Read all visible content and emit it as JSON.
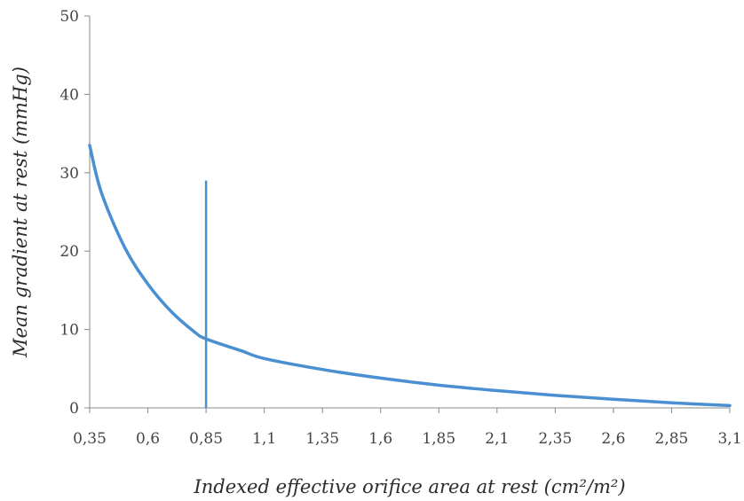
{
  "chart_data": {
    "type": "line",
    "xlabel": "Indexed effective orifice area at rest (cm²/m²)",
    "ylabel": "Mean gradient at rest (mmHg)",
    "x_ticks": [
      "0,35",
      "0,6",
      "0,85",
      "1,1",
      "1,35",
      "1,6",
      "1,85",
      "2,1",
      "2,35",
      "2,6",
      "2,85",
      "3,1"
    ],
    "y_ticks": [
      "0",
      "10",
      "20",
      "30",
      "40",
      "50"
    ],
    "xlim": [
      0.35,
      3.1
    ],
    "ylim": [
      0,
      50
    ],
    "grid": false,
    "legend": "none",
    "series": [
      {
        "color": "#4a8fd1",
        "x": [
          0.35,
          0.4,
          0.5,
          0.6,
          0.7,
          0.8,
          0.85,
          1.0,
          1.1,
          1.35,
          1.6,
          1.85,
          2.1,
          2.35,
          2.6,
          2.85,
          3.1
        ],
        "y": [
          33.5,
          27.5,
          20.5,
          15.8,
          12.3,
          9.7,
          8.8,
          7.3,
          6.3,
          4.9,
          3.8,
          2.9,
          2.2,
          1.6,
          1.1,
          0.65,
          0.3
        ]
      }
    ],
    "reference_lines": [
      {
        "orientation": "vertical",
        "x": 0.85,
        "y_from": 0,
        "y_to": 29,
        "color": "#4a8fd1"
      }
    ]
  }
}
